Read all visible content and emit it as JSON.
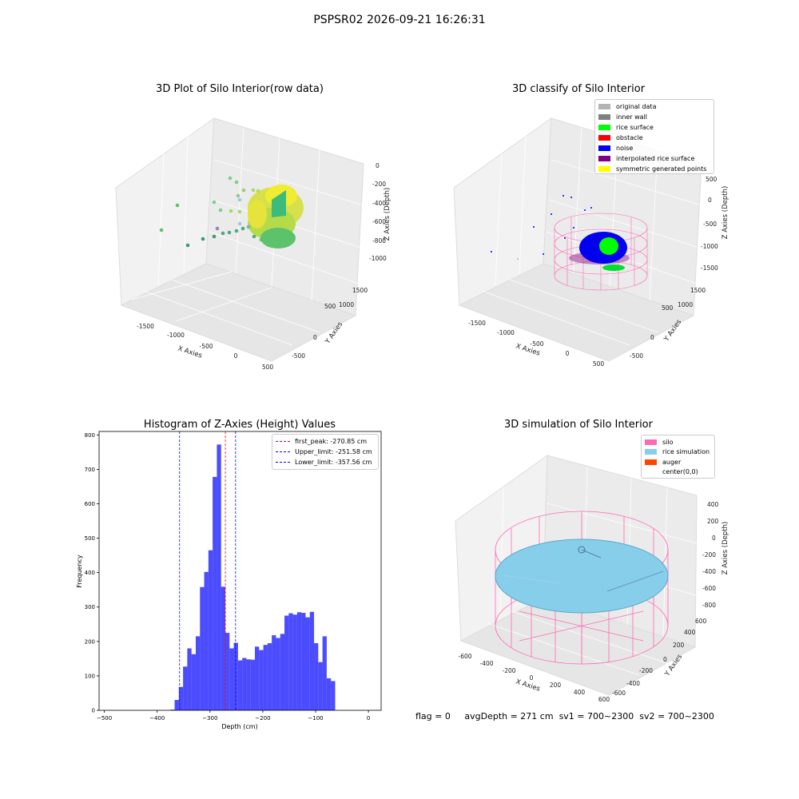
{
  "suptitle": "PSPSR02 2026-09-21 16:26:31",
  "panels": {
    "raw": {
      "title": "3D Plot of Silo Interior(row data)",
      "xlabel": "X Axies",
      "ylabel": "Y Axies",
      "zlabel": "Z Axies (Depth)",
      "xticks": [
        "-1500",
        "-1000",
        "-500",
        "0",
        "500"
      ],
      "yticks": [
        "-500",
        "0",
        "500",
        "1000",
        "1500"
      ],
      "zticks": [
        "0",
        "-200",
        "-400",
        "-600",
        "-800",
        "-1000"
      ]
    },
    "classify": {
      "title": "3D classify of Silo Interior",
      "xlabel": "X Axies",
      "ylabel": "Y Axies",
      "zlabel": "Z Axies (Depth)",
      "xticks": [
        "-1500",
        "-1000",
        "-500",
        "0",
        "500"
      ],
      "yticks": [
        "-500",
        "0",
        "500",
        "1000",
        "1500"
      ],
      "zticks": [
        "500",
        "0",
        "-500",
        "-1000",
        "-1500"
      ],
      "legend": [
        {
          "label": "original data",
          "color": "#b3b3b3"
        },
        {
          "label": "inner wall",
          "color": "#808080"
        },
        {
          "label": "rice surface",
          "color": "#00ff00"
        },
        {
          "label": "obstacle",
          "color": "#ff0000"
        },
        {
          "label": "noise",
          "color": "#0000ff"
        },
        {
          "label": "interpolated rice surface",
          "color": "#800080"
        },
        {
          "label": "symmetric generated points",
          "color": "#ffff00"
        }
      ]
    },
    "simulation": {
      "title": "3D simulation of Silo Interior",
      "xlabel": "X Axies",
      "ylabel": "Y Axies",
      "zlabel": "Z Axies (Depth)",
      "xticks": [
        "-600",
        "-400",
        "-200",
        "0",
        "200",
        "400",
        "600"
      ],
      "yticks": [
        "-600",
        "-400",
        "-200",
        "0",
        "200",
        "400",
        "600"
      ],
      "zticks": [
        "400",
        "200",
        "0",
        "-200",
        "-400",
        "-600",
        "-800"
      ],
      "legend": [
        {
          "label": "silo",
          "color": "#ff69b4"
        },
        {
          "label": "rice simulation",
          "color": "#87ceeb"
        },
        {
          "label": "auger",
          "color": "#ff4500"
        },
        {
          "label": "center(0,0)",
          "color": ""
        }
      ]
    }
  },
  "chart_data": [
    {
      "type": "scatter",
      "title": "3D Plot of Silo Interior(row data)",
      "xlabel": "X Axies",
      "ylabel": "Y Axies",
      "zlabel": "Z Axies (Depth)",
      "xlim": [
        -1800,
        600
      ],
      "ylim": [
        -700,
        1700
      ],
      "zlim": [
        -1100,
        50
      ]
    },
    {
      "type": "scatter",
      "title": "3D classify of Silo Interior",
      "xlabel": "X Axies",
      "ylabel": "Y Axies",
      "zlabel": "Z Axies (Depth)",
      "xlim": [
        -1800,
        600
      ],
      "ylim": [
        -700,
        1700
      ],
      "zlim": [
        -1600,
        600
      ]
    },
    {
      "type": "bar",
      "title": "Histogram of Z-Axies (Height) Values",
      "xlabel": "Depth (cm)",
      "ylabel": "Frequency",
      "bar_color": "#0000ff",
      "xlim": [
        -510,
        24
      ],
      "ylim": [
        0,
        810
      ],
      "xticks": [
        -500,
        -400,
        -300,
        -200,
        -100,
        0
      ],
      "yticks": [
        0,
        100,
        200,
        300,
        400,
        500,
        600,
        700,
        800
      ],
      "bin_start": -375,
      "bin_width": 8,
      "values": [
        2,
        30,
        68,
        127,
        180,
        163,
        215,
        358,
        402,
        465,
        678,
        772,
        359,
        225,
        180,
        196,
        145,
        152,
        148,
        147,
        185,
        175,
        190,
        195,
        218,
        210,
        222,
        275,
        282,
        278,
        285,
        283,
        270,
        286,
        195,
        140,
        215,
        93,
        85
      ],
      "lines": [
        {
          "label": "first_peak: -270.85 cm",
          "x": -270.85,
          "color": "#ff0000"
        },
        {
          "label": "Upper_limit: -251.58 cm",
          "x": -251.58,
          "color": "#0000ff"
        },
        {
          "label": "Lower_limit: -357.56 cm",
          "x": -357.56,
          "color": "#0000ff"
        }
      ]
    },
    {
      "type": "area",
      "title": "3D simulation of Silo Interior",
      "xlabel": "X Axies",
      "ylabel": "Y Axies",
      "zlabel": "Z Axies (Depth)",
      "xlim": [
        -650,
        650
      ],
      "ylim": [
        -650,
        650
      ],
      "zlim": [
        -900,
        480
      ]
    }
  ],
  "footer": {
    "flag": "flag = 0",
    "avg": "avgDepth = 271 cm",
    "sv1": "sv1 = 700~2300",
    "sv2": "sv2 = 700~2300"
  }
}
